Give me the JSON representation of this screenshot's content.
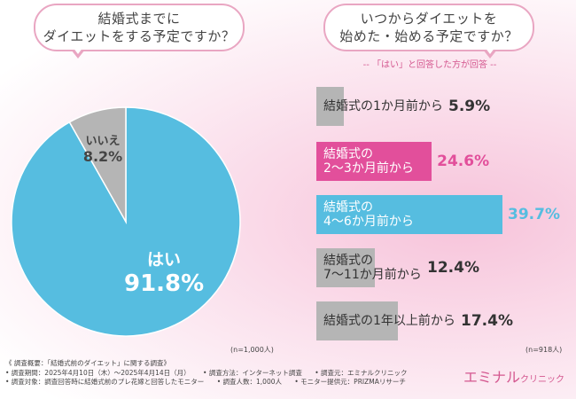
{
  "questions": {
    "left": [
      "結婚式までに",
      "ダイエットをする予定ですか？"
    ],
    "right": [
      "いつからダイエットを",
      "始めた・始める予定ですか？"
    ],
    "sub_note": "-- 「はい」と回答した方が回答 --"
  },
  "chart_data": [
    {
      "type": "pie",
      "slices": [
        {
          "label": "はい",
          "value": 91.8,
          "display": "91.8%",
          "color": "#56bde0"
        },
        {
          "label": "いいえ",
          "value": 8.2,
          "display": "8.2%",
          "color": "#b5b5b5"
        }
      ],
      "n": "(n=1,000人)"
    },
    {
      "type": "bar",
      "orientation": "horizontal",
      "categories": [
        [
          "結婚式の1か月前から"
        ],
        [
          "結婚式の",
          "2〜3か月前から"
        ],
        [
          "結婚式の",
          "4〜6か月前から"
        ],
        [
          "結婚式の",
          "7〜11か月前から"
        ],
        [
          "結婚式の1年以上前から"
        ]
      ],
      "values": [
        5.9,
        24.6,
        39.7,
        12.4,
        17.4
      ],
      "display": [
        "5.9%",
        "24.6%",
        "39.7%",
        "12.4%",
        "17.4%"
      ],
      "colors": [
        "#b5b5b5",
        "#e24f9b",
        "#56bde0",
        "#b5b5b5",
        "#b5b5b5"
      ],
      "highlighted": [
        false,
        true,
        true,
        false,
        false
      ],
      "n": "(n=918人)"
    }
  ],
  "footer": {
    "rows": [
      [
        "《 調査概要：「結婚式前のダイエット」に関する調査》"
      ],
      [
        "• 調査期間：2025年4月10日（木）〜2025年4月14日（月）",
        "• 調査方法：インターネット調査",
        "• 調査元：エミナルクリニック"
      ],
      [
        "• 調査対象：調査回答時に結婚式前のプレ花嫁と回答したモニター",
        "• 調査人数：1,000人",
        "• モニター提供元：PRIZMAリサーチ"
      ]
    ]
  },
  "logo": {
    "main": "エミナル",
    "sub": "クリニック"
  }
}
